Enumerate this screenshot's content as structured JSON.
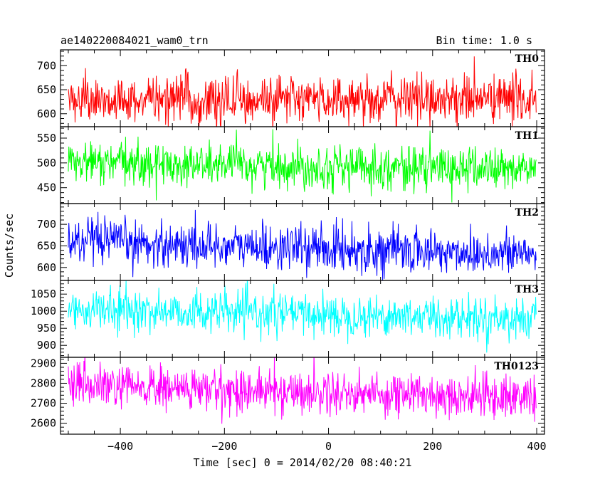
{
  "chart_data": {
    "type": "line",
    "title": "ae140220084021_wam0_trn",
    "subtitle": "Bin time: 1.0 s",
    "xlabel": "Time [sec] 0 = 2014/02/20 08:40:21",
    "ylabel": "Counts/sec",
    "xlim": [
      -515,
      415
    ],
    "x_range": [
      -500,
      399
    ],
    "bin": 1.0,
    "xticks": [
      -400,
      -200,
      0,
      200,
      400
    ],
    "x_tick_labels": [
      "−400",
      "−200",
      "0",
      "200",
      "400"
    ],
    "grid": false,
    "panels": [
      {
        "name": "TH0",
        "color": "#ff0000",
        "ylim": [
          573,
          733
        ],
        "yticks": [
          600,
          650,
          700
        ],
        "mean_start": 628,
        "mean_end": 632,
        "noise_sd": 25
      },
      {
        "name": "TH1",
        "color": "#00ff00",
        "ylim": [
          418,
          573
        ],
        "yticks": [
          450,
          500,
          550
        ],
        "mean_start": 500,
        "mean_end": 487,
        "noise_sd": 22
      },
      {
        "name": "TH2",
        "color": "#0000ff",
        "ylim": [
          570,
          748
        ],
        "yticks": [
          600,
          650,
          700
        ],
        "mean_start": 660,
        "mean_end": 630,
        "noise_sd": 26
      },
      {
        "name": "TH3",
        "color": "#00ffff",
        "ylim": [
          865,
          1090
        ],
        "yticks": [
          900,
          950,
          1000,
          1050
        ],
        "mean_start": 1005,
        "mean_end": 978,
        "noise_sd": 30
      },
      {
        "name": "TH0123",
        "color": "#ff00ff",
        "ylim": [
          2545,
          2930
        ],
        "yticks": [
          2600,
          2700,
          2800,
          2900
        ],
        "mean_start": 2785,
        "mean_end": 2730,
        "noise_sd": 55
      }
    ]
  }
}
